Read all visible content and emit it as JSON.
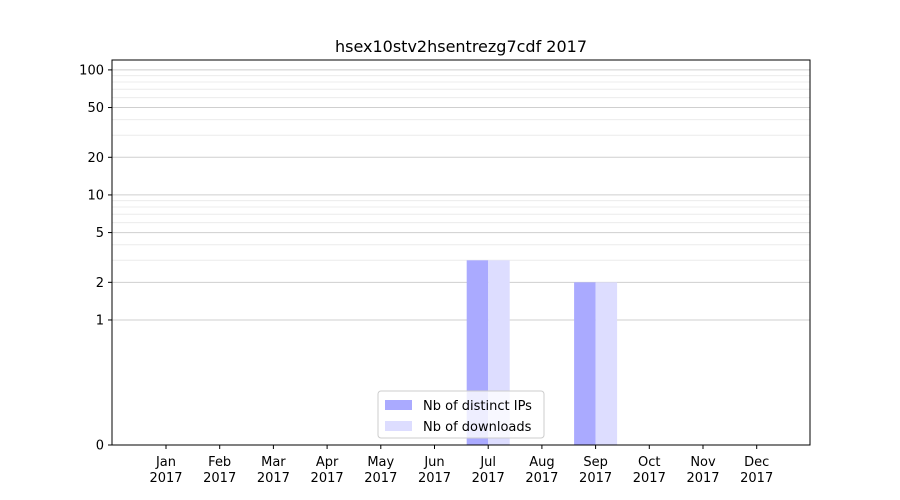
{
  "chart_data": {
    "type": "bar",
    "title": "hsex10stv2hsentrezg7cdf 2017",
    "xlabel": "",
    "ylabel": "",
    "yscale": "symlog",
    "ylim": [
      0,
      120
    ],
    "yticks": [
      0,
      1,
      2,
      5,
      10,
      20,
      50,
      100
    ],
    "grid": true,
    "legend_position": "lower-center",
    "categories": [
      {
        "month": "Jan",
        "year": "2017"
      },
      {
        "month": "Feb",
        "year": "2017"
      },
      {
        "month": "Mar",
        "year": "2017"
      },
      {
        "month": "Apr",
        "year": "2017"
      },
      {
        "month": "May",
        "year": "2017"
      },
      {
        "month": "Jun",
        "year": "2017"
      },
      {
        "month": "Jul",
        "year": "2017"
      },
      {
        "month": "Aug",
        "year": "2017"
      },
      {
        "month": "Sep",
        "year": "2017"
      },
      {
        "month": "Oct",
        "year": "2017"
      },
      {
        "month": "Nov",
        "year": "2017"
      },
      {
        "month": "Dec",
        "year": "2017"
      }
    ],
    "series": [
      {
        "name": "Nb of distinct IPs",
        "color": "#aaaaff",
        "values": [
          0,
          0,
          0,
          0,
          0,
          0,
          3,
          0,
          2,
          0,
          0,
          0
        ]
      },
      {
        "name": "Nb of downloads",
        "color": "#ddddff",
        "values": [
          0,
          0,
          0,
          0,
          0,
          0,
          3,
          0,
          2,
          0,
          0,
          0
        ]
      }
    ]
  }
}
